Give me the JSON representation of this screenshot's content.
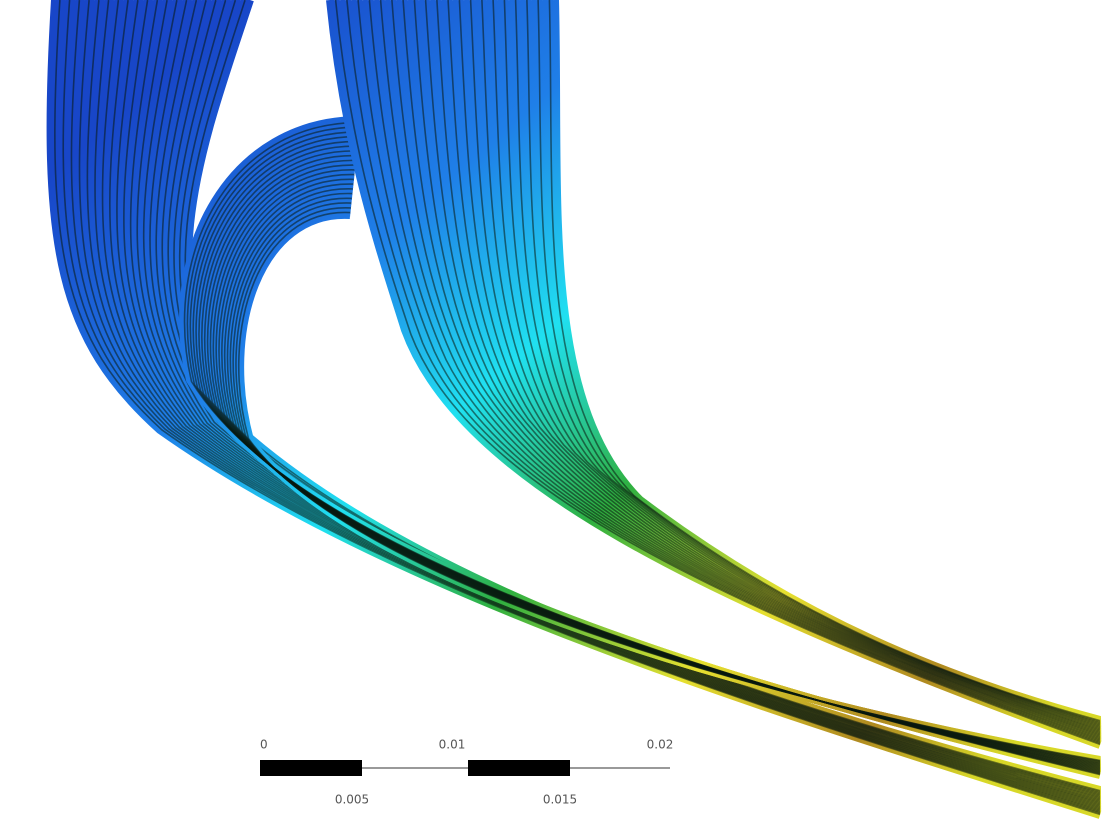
{
  "scale_bar": {
    "top_labels": [
      "0",
      "0.01",
      "0.02"
    ],
    "bottom_labels": [
      "0.005",
      "0.015"
    ]
  }
}
